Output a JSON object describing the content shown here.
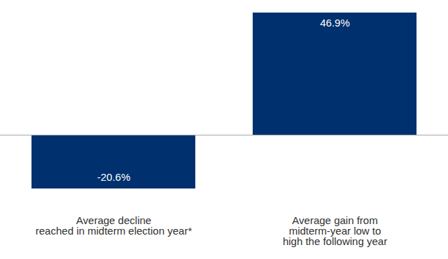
{
  "chart_data": {
    "type": "bar",
    "categories": [
      "Average decline\nreached in midterm election year*",
      "Average gain from\nmidterm-year low to\nhigh the following year"
    ],
    "values": [
      -20.6,
      46.9
    ],
    "value_labels": [
      "-20.6%",
      "46.9%"
    ],
    "color": "#00306e",
    "ylim": [
      -20.6,
      46.9
    ],
    "yticks": [],
    "grid": false,
    "data_labels": true,
    "tick_labels": "x"
  }
}
